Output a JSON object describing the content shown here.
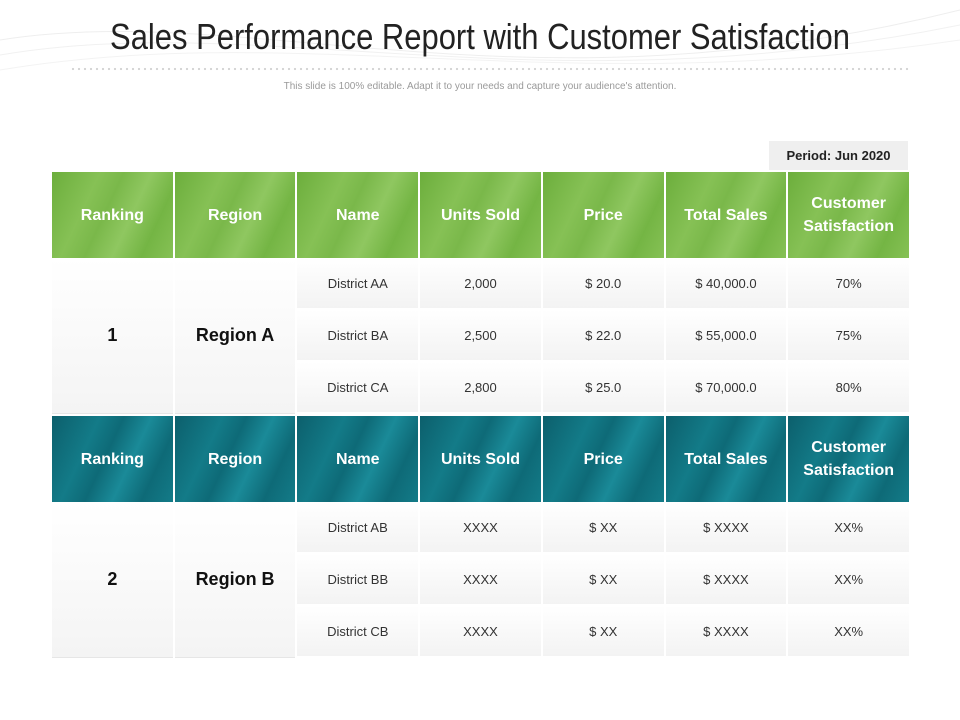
{
  "title": "Sales Performance Report with Customer Satisfaction",
  "subtitle": "This slide is 100% editable. Adapt it to your needs and capture your audience's attention.",
  "period": "Period: Jun 2020",
  "columns": [
    "Ranking",
    "Region",
    "Name",
    "Units Sold",
    "Price",
    "Total Sales",
    "Customer Satisfaction"
  ],
  "groups": [
    {
      "header_color": "#7ab84a",
      "ranking": "1",
      "region": "Region A",
      "rows": [
        {
          "name": "District AA",
          "units": "2,000",
          "price": "$ 20.0",
          "total": "$ 40,000.0",
          "satisfaction": "70%"
        },
        {
          "name": "District BA",
          "units": "2,500",
          "price": "$ 22.0",
          "total": "$ 55,000.0",
          "satisfaction": "75%"
        },
        {
          "name": "District CA",
          "units": "2,800",
          "price": "$ 25.0",
          "total": "$ 70,000.0",
          "satisfaction": "80%"
        }
      ]
    },
    {
      "header_color": "#0e6a77",
      "ranking": "2",
      "region": "Region B",
      "rows": [
        {
          "name": "District AB",
          "units": "XXXX",
          "price": "$ XX",
          "total": "$ XXXX",
          "satisfaction": "XX%"
        },
        {
          "name": "District BB",
          "units": "XXXX",
          "price": "$ XX",
          "total": "$ XXXX",
          "satisfaction": "XX%"
        },
        {
          "name": "District CB",
          "units": "XXXX",
          "price": "$ XX",
          "total": "$ XXXX",
          "satisfaction": "XX%"
        }
      ]
    }
  ]
}
